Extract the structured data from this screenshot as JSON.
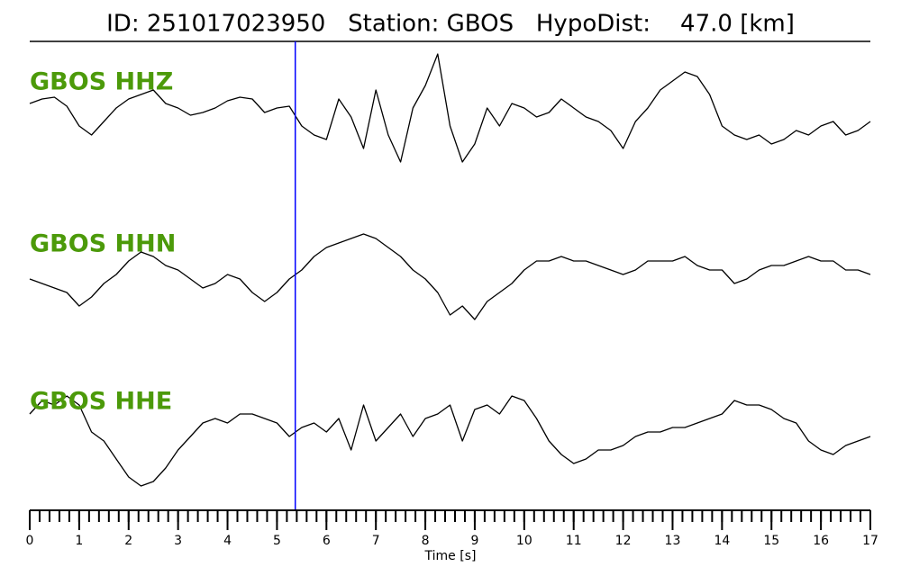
{
  "chart_data": {
    "type": "line",
    "title": "ID: 251017023950   Station: GBOS   HypoDist:    47.0 [km]",
    "xlabel": "Time [s]",
    "x": [
      0,
      0.25,
      0.5,
      0.75,
      1,
      1.25,
      1.5,
      1.75,
      2,
      2.25,
      2.5,
      2.75,
      3,
      3.25,
      3.5,
      3.75,
      4,
      4.25,
      4.5,
      4.75,
      5,
      5.25,
      5.5,
      5.75,
      6,
      6.25,
      6.5,
      6.75,
      7,
      7.25,
      7.5,
      7.75,
      8,
      8.25,
      8.5,
      8.75,
      9,
      9.25,
      9.5,
      9.75,
      10,
      10.25,
      10.5,
      10.75,
      11,
      11.25,
      11.5,
      11.75,
      12,
      12.25,
      12.5,
      12.75,
      13,
      13.25,
      13.5,
      13.75,
      14,
      14.25,
      14.5,
      14.75,
      15,
      15.25,
      15.5,
      15.75,
      16,
      16.25,
      16.5,
      16.75,
      17
    ],
    "series": [
      {
        "name": "GBOS HHZ",
        "color": "#000000",
        "values": [
          10,
          15,
          17,
          7,
          -15,
          -25,
          -10,
          5,
          15,
          20,
          25,
          10,
          5,
          -3,
          0,
          5,
          13,
          17,
          15,
          0,
          5,
          7,
          -15,
          -25,
          -30,
          15,
          -5,
          -40,
          25,
          -25,
          -55,
          5,
          30,
          65,
          -15,
          -55,
          -35,
          5,
          -15,
          10,
          5,
          -5,
          0,
          15,
          5,
          -5,
          -10,
          -20,
          -40,
          -10,
          5,
          25,
          35,
          45,
          40,
          20,
          -15,
          -25,
          -30,
          -25,
          -35,
          -30,
          -20,
          -25,
          -15,
          -10,
          -25,
          -20,
          -10
        ]
      },
      {
        "name": "GBOS HHN",
        "color": "#000000",
        "values": [
          -5,
          -10,
          -15,
          -20,
          -35,
          -25,
          -10,
          0,
          15,
          25,
          20,
          10,
          5,
          -5,
          -15,
          -10,
          0,
          -5,
          -20,
          -30,
          -20,
          -5,
          5,
          20,
          30,
          35,
          40,
          45,
          40,
          30,
          20,
          5,
          -5,
          -20,
          -45,
          -35,
          -50,
          -30,
          -20,
          -10,
          5,
          15,
          15,
          20,
          15,
          15,
          10,
          5,
          0,
          5,
          15,
          15,
          15,
          20,
          10,
          5,
          5,
          -10,
          -5,
          5,
          10,
          10,
          15,
          20,
          15,
          15,
          5,
          5,
          0
        ]
      },
      {
        "name": "GBOS HHE",
        "color": "#000000",
        "values": [
          20,
          35,
          30,
          40,
          30,
          0,
          -10,
          -30,
          -50,
          -60,
          -55,
          -40,
          -20,
          -5,
          10,
          15,
          10,
          20,
          20,
          15,
          10,
          -5,
          5,
          10,
          0,
          15,
          -20,
          30,
          -10,
          5,
          20,
          -5,
          15,
          20,
          30,
          -10,
          25,
          30,
          20,
          40,
          35,
          15,
          -10,
          -25,
          -35,
          -30,
          -20,
          -20,
          -15,
          -5,
          0,
          0,
          5,
          5,
          10,
          15,
          20,
          35,
          30,
          30,
          25,
          15,
          10,
          -10,
          -20,
          -25,
          -15,
          -10,
          -5
        ]
      }
    ],
    "label_color": "#4c9a0a",
    "ylim": [
      -90,
      90
    ],
    "xlim": [
      0,
      17
    ],
    "xticks": [
      0,
      1,
      2,
      3,
      4,
      5,
      6,
      7,
      8,
      9,
      10,
      11,
      12,
      13,
      14,
      15,
      16,
      17
    ],
    "minor_tick_interval": 0.2,
    "pick_time": 5.37,
    "pick_color": "#0000ff"
  }
}
